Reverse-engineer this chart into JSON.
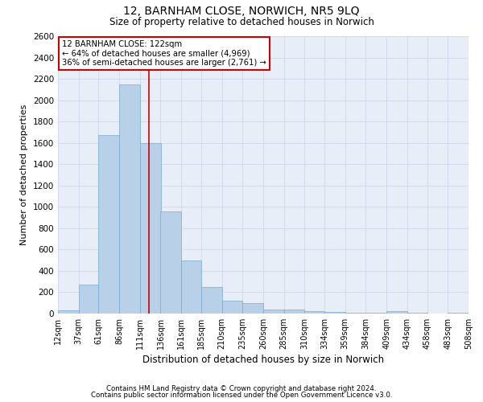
{
  "title1": "12, BARNHAM CLOSE, NORWICH, NR5 9LQ",
  "title2": "Size of property relative to detached houses in Norwich",
  "xlabel": "Distribution of detached houses by size in Norwich",
  "ylabel": "Number of detached properties",
  "annotation_line1": "12 BARNHAM CLOSE: 122sqm",
  "annotation_line2": "← 64% of detached houses are smaller (4,969)",
  "annotation_line3": "36% of semi-detached houses are larger (2,761) →",
  "property_size": 122,
  "bin_edges": [
    12,
    37,
    61,
    86,
    111,
    136,
    161,
    185,
    210,
    235,
    260,
    285,
    310,
    334,
    359,
    384,
    409,
    434,
    458,
    483,
    508
  ],
  "bar_heights": [
    30,
    270,
    1670,
    2150,
    1600,
    960,
    500,
    245,
    120,
    95,
    40,
    35,
    20,
    12,
    8,
    5,
    20,
    5,
    3,
    10
  ],
  "bar_color": "#b8d0e8",
  "bar_edge_color": "#7aaace",
  "vline_color": "#cc0000",
  "vline_x": 122,
  "ylim": [
    0,
    2600
  ],
  "yticks": [
    0,
    200,
    400,
    600,
    800,
    1000,
    1200,
    1400,
    1600,
    1800,
    2000,
    2200,
    2400,
    2600
  ],
  "grid_color": "#d0d8e8",
  "annotation_box_color": "#ffffff",
  "annotation_box_edge": "#cc0000",
  "footer1": "Contains HM Land Registry data © Crown copyright and database right 2024.",
  "footer2": "Contains public sector information licensed under the Open Government Licence v3.0.",
  "background_color": "#e8eef8"
}
